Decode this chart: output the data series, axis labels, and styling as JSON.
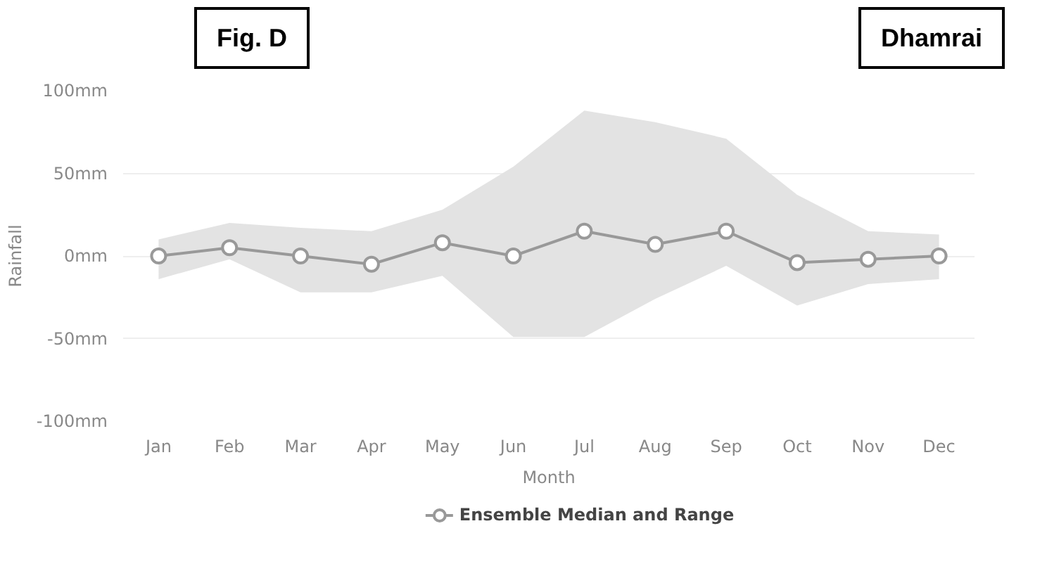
{
  "chart_data": {
    "type": "line",
    "xlabel": "Month",
    "ylabel": "Rainfall",
    "annotations": [
      "Fig. D",
      "Dhamrai"
    ],
    "categories": [
      "Jan",
      "Feb",
      "Mar",
      "Apr",
      "May",
      "Jun",
      "Jul",
      "Aug",
      "Sep",
      "Oct",
      "Nov",
      "Dec"
    ],
    "series": [
      {
        "name": "Ensemble Median and Range",
        "color": "#999999",
        "values": [
          0,
          5,
          0,
          -5,
          8,
          0,
          15,
          7,
          15,
          -4,
          -2,
          0
        ],
        "lower": [
          -14,
          -2,
          -22,
          -22,
          -12,
          -49,
          -49,
          -26,
          -6,
          -30,
          -17,
          -14
        ],
        "upper": [
          10,
          20,
          17,
          15,
          28,
          54,
          88,
          81,
          71,
          37,
          15,
          13
        ]
      }
    ],
    "ylim": [
      -100,
      100
    ],
    "yticks": [
      {
        "value": -100,
        "label": "-100mm"
      },
      {
        "value": -50,
        "label": "-50mm"
      },
      {
        "value": 0,
        "label": "0mm"
      },
      {
        "value": 50,
        "label": "50mm"
      },
      {
        "value": 100,
        "label": "100mm"
      }
    ],
    "grid": "y",
    "legend": "bottom",
    "marker": "circle",
    "line_style": "solid"
  }
}
